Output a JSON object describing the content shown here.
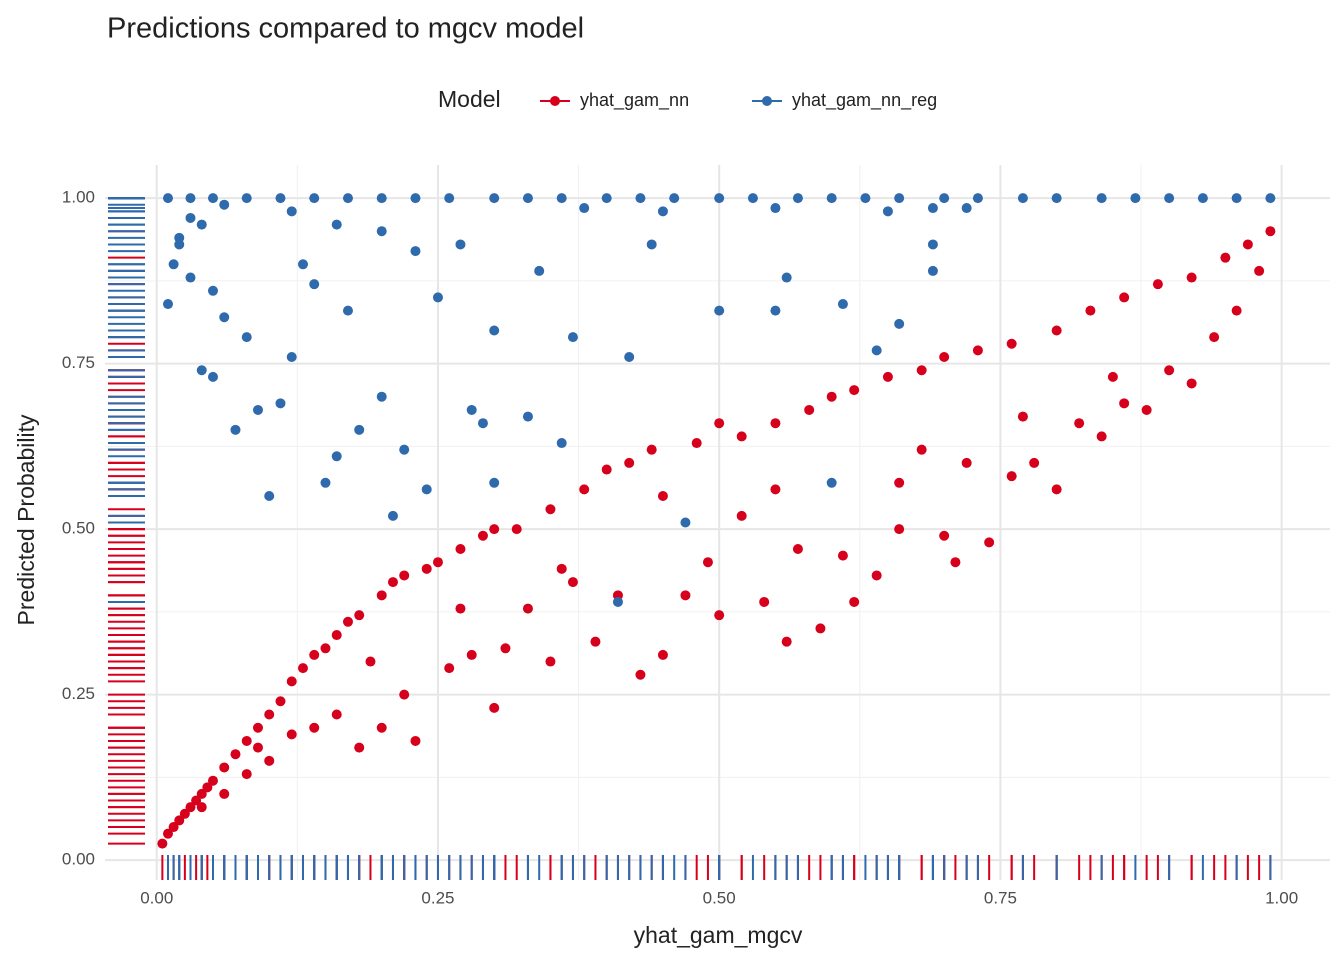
{
  "chart_data": {
    "type": "scatter",
    "title": "Predictions compared to mgcv model",
    "x_label": "yhat_gam_mgcv",
    "y_label": "Predicted Probability",
    "legend_title": "Model",
    "legend_position": "top",
    "grid": true,
    "minor_grid": true,
    "rug": true,
    "xlim": [
      -0.046,
      1.043
    ],
    "ylim": [
      -0.03,
      1.05
    ],
    "xticks": [
      {
        "value": 0,
        "label": "0.00"
      },
      {
        "value": 0.25,
        "label": "0.25"
      },
      {
        "value": 0.5,
        "label": "0.50"
      },
      {
        "value": 0.75,
        "label": "0.75"
      },
      {
        "value": 1,
        "label": "1.00"
      }
    ],
    "yticks": [
      {
        "value": 0,
        "label": "0.00"
      },
      {
        "value": 0.25,
        "label": "0.25"
      },
      {
        "value": 0.5,
        "label": "0.50"
      },
      {
        "value": 0.75,
        "label": "0.75"
      },
      {
        "value": 1,
        "label": "1.00"
      }
    ],
    "series": [
      {
        "name": "yhat_gam_nn",
        "color": "#d7001c",
        "x": [
          0.005,
          0.01,
          0.015,
          0.02,
          0.025,
          0.03,
          0.035,
          0.04,
          0.045,
          0.05,
          0.06,
          0.07,
          0.08,
          0.09,
          0.1,
          0.11,
          0.12,
          0.13,
          0.14,
          0.15,
          0.16,
          0.17,
          0.18,
          0.2,
          0.21,
          0.22,
          0.24,
          0.25,
          0.27,
          0.29,
          0.3,
          0.32,
          0.35,
          0.38,
          0.4,
          0.42,
          0.44,
          0.48,
          0.5,
          0.52,
          0.55,
          0.58,
          0.6,
          0.62,
          0.65,
          0.68,
          0.7,
          0.73,
          0.76,
          0.8,
          0.83,
          0.86,
          0.89,
          0.92,
          0.95,
          0.97,
          0.99,
          0.06,
          0.08,
          0.1,
          0.12,
          0.14,
          0.16,
          0.18,
          0.2,
          0.22,
          0.23,
          0.26,
          0.28,
          0.3,
          0.31,
          0.33,
          0.35,
          0.37,
          0.39,
          0.41,
          0.43,
          0.45,
          0.47,
          0.49,
          0.5,
          0.52,
          0.54,
          0.56,
          0.57,
          0.59,
          0.61,
          0.62,
          0.64,
          0.66,
          0.68,
          0.7,
          0.71,
          0.72,
          0.74,
          0.76,
          0.78,
          0.8,
          0.82,
          0.84,
          0.86,
          0.88,
          0.9,
          0.92,
          0.94,
          0.96,
          0.98,
          0.85,
          0.77,
          0.66,
          0.55,
          0.45,
          0.36,
          0.27,
          0.19,
          0.09,
          0.04
        ],
        "values": [
          0.025,
          0.04,
          0.05,
          0.06,
          0.07,
          0.08,
          0.09,
          0.1,
          0.11,
          0.12,
          0.14,
          0.16,
          0.18,
          0.2,
          0.22,
          0.24,
          0.27,
          0.29,
          0.31,
          0.32,
          0.34,
          0.36,
          0.37,
          0.4,
          0.42,
          0.43,
          0.44,
          0.45,
          0.47,
          0.49,
          0.5,
          0.5,
          0.53,
          0.56,
          0.59,
          0.6,
          0.62,
          0.63,
          0.66,
          0.64,
          0.66,
          0.68,
          0.7,
          0.71,
          0.73,
          0.74,
          0.76,
          0.77,
          0.78,
          0.8,
          0.83,
          0.85,
          0.87,
          0.88,
          0.91,
          0.93,
          0.95,
          0.1,
          0.13,
          0.15,
          0.19,
          0.2,
          0.22,
          0.17,
          0.2,
          0.25,
          0.18,
          0.29,
          0.31,
          0.23,
          0.32,
          0.38,
          0.3,
          0.42,
          0.33,
          0.4,
          0.28,
          0.31,
          0.4,
          0.45,
          0.37,
          0.52,
          0.39,
          0.33,
          0.47,
          0.35,
          0.46,
          0.39,
          0.43,
          0.5,
          0.62,
          0.49,
          0.45,
          0.6,
          0.48,
          0.58,
          0.6,
          0.56,
          0.66,
          0.64,
          0.69,
          0.68,
          0.74,
          0.72,
          0.79,
          0.83,
          0.89,
          0.73,
          0.67,
          0.57,
          0.56,
          0.55,
          0.44,
          0.38,
          0.3,
          0.17,
          0.08
        ]
      },
      {
        "name": "yhat_gam_nn_reg",
        "color": "#2f6aad",
        "x": [
          0.01,
          0.03,
          0.05,
          0.08,
          0.11,
          0.14,
          0.17,
          0.2,
          0.23,
          0.26,
          0.3,
          0.33,
          0.36,
          0.4,
          0.43,
          0.46,
          0.5,
          0.53,
          0.57,
          0.6,
          0.63,
          0.66,
          0.7,
          0.73,
          0.77,
          0.8,
          0.84,
          0.87,
          0.9,
          0.93,
          0.96,
          0.99,
          0.38,
          0.45,
          0.55,
          0.65,
          0.69,
          0.72,
          0.01,
          0.015,
          0.02,
          0.03,
          0.04,
          0.05,
          0.06,
          0.07,
          0.08,
          0.09,
          0.1,
          0.11,
          0.12,
          0.13,
          0.14,
          0.15,
          0.16,
          0.17,
          0.18,
          0.2,
          0.2,
          0.21,
          0.22,
          0.23,
          0.24,
          0.25,
          0.27,
          0.28,
          0.3,
          0.3,
          0.33,
          0.34,
          0.36,
          0.37,
          0.41,
          0.42,
          0.44,
          0.47,
          0.5,
          0.55,
          0.56,
          0.6,
          0.61,
          0.64,
          0.66,
          0.69,
          0.69,
          0.04,
          0.05,
          0.02,
          0.03,
          0.16,
          0.29,
          0.06,
          0.12
        ],
        "values": [
          1,
          1,
          1,
          1,
          1,
          1,
          1,
          1,
          1,
          1,
          1,
          1,
          1,
          1,
          1,
          1,
          1,
          1,
          1,
          1,
          1,
          1,
          1,
          1,
          1,
          1,
          1,
          1,
          1,
          1,
          1,
          1,
          0.985,
          0.98,
          0.985,
          0.98,
          0.985,
          0.985,
          0.84,
          0.9,
          0.93,
          0.88,
          0.96,
          0.86,
          0.82,
          0.65,
          0.79,
          0.68,
          0.55,
          0.69,
          0.76,
          0.9,
          0.87,
          0.57,
          0.61,
          0.83,
          0.65,
          0.95,
          0.7,
          0.52,
          0.62,
          0.92,
          0.56,
          0.85,
          0.93,
          0.68,
          0.8,
          0.57,
          0.67,
          0.89,
          0.63,
          0.79,
          0.39,
          0.76,
          0.93,
          0.51,
          0.83,
          0.83,
          0.88,
          0.57,
          0.84,
          0.77,
          0.81,
          0.89,
          0.93,
          0.74,
          0.73,
          0.94,
          0.97,
          0.96,
          0.66,
          0.99,
          0.98
        ]
      }
    ]
  }
}
